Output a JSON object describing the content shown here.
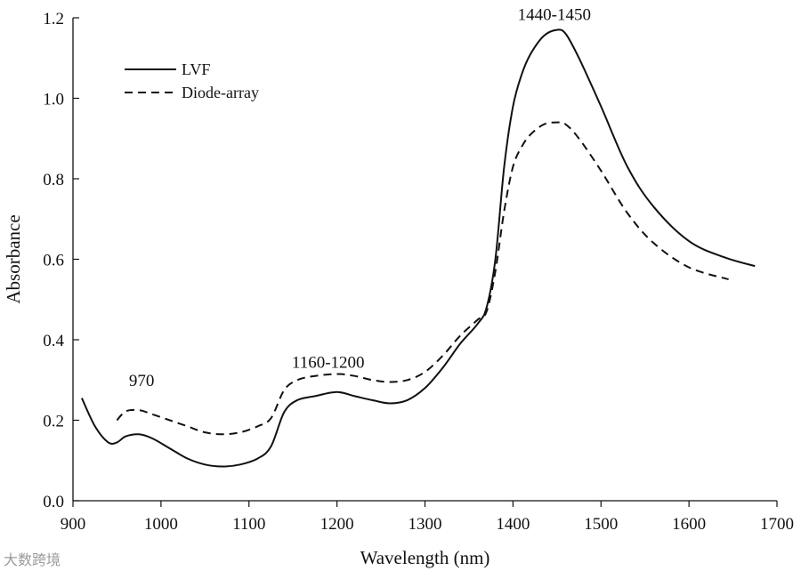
{
  "chart_data": {
    "type": "line",
    "title": "",
    "xlabel": "Wavelength (nm)",
    "ylabel": "Absorbance",
    "xlim": [
      900,
      1700
    ],
    "ylim": [
      0,
      1.2
    ],
    "xticks": [
      900,
      1000,
      1100,
      1200,
      1300,
      1400,
      1500,
      1600,
      1700
    ],
    "yticks": [
      0.0,
      0.2,
      0.4,
      0.6,
      0.8,
      1.0,
      1.2
    ],
    "xtick_labels": [
      "900",
      "1000",
      "1100",
      "1200",
      "1300",
      "1400",
      "1500",
      "1600",
      "1700"
    ],
    "ytick_labels": [
      "0.0",
      "0.2",
      "0.4",
      "0.6",
      "0.8",
      "1.0",
      "1.2"
    ],
    "grid": false,
    "legend_position": "top-left",
    "series": [
      {
        "name": "LVF",
        "style": "solid",
        "color": "#111111",
        "x": [
          910,
          925,
          940,
          950,
          960,
          975,
          990,
          1010,
          1030,
          1050,
          1070,
          1090,
          1110,
          1125,
          1140,
          1155,
          1175,
          1200,
          1220,
          1240,
          1260,
          1280,
          1300,
          1320,
          1340,
          1360,
          1370,
          1380,
          1390,
          1400,
          1410,
          1420,
          1435,
          1450,
          1460,
          1475,
          1500,
          1530,
          1560,
          1600,
          1640,
          1675
        ],
        "y": [
          0.255,
          0.185,
          0.145,
          0.145,
          0.16,
          0.165,
          0.155,
          0.13,
          0.105,
          0.09,
          0.085,
          0.09,
          0.105,
          0.135,
          0.22,
          0.25,
          0.26,
          0.27,
          0.26,
          0.25,
          0.242,
          0.25,
          0.28,
          0.33,
          0.39,
          0.44,
          0.48,
          0.6,
          0.83,
          0.98,
          1.06,
          1.11,
          1.155,
          1.17,
          1.16,
          1.1,
          0.98,
          0.83,
          0.73,
          0.645,
          0.605,
          0.583
        ]
      },
      {
        "name": "Diode-array",
        "style": "dashed",
        "color": "#111111",
        "x": [
          950,
          960,
          975,
          990,
          1010,
          1030,
          1050,
          1070,
          1090,
          1110,
          1125,
          1140,
          1155,
          1175,
          1200,
          1220,
          1240,
          1260,
          1280,
          1300,
          1320,
          1340,
          1360,
          1370,
          1380,
          1390,
          1400,
          1410,
          1420,
          1435,
          1450,
          1460,
          1475,
          1500,
          1530,
          1560,
          1600,
          1645
        ],
        "y": [
          0.2,
          0.222,
          0.225,
          0.215,
          0.2,
          0.185,
          0.17,
          0.165,
          0.17,
          0.185,
          0.205,
          0.275,
          0.3,
          0.31,
          0.315,
          0.31,
          0.3,
          0.295,
          0.3,
          0.32,
          0.36,
          0.41,
          0.45,
          0.47,
          0.57,
          0.72,
          0.83,
          0.88,
          0.91,
          0.935,
          0.94,
          0.935,
          0.9,
          0.82,
          0.715,
          0.64,
          0.58,
          0.55
        ]
      }
    ],
    "annotations": [
      {
        "text": "970",
        "x": 978,
        "y": 0.285
      },
      {
        "text": "1160-1200",
        "x": 1190,
        "y": 0.33
      },
      {
        "text": "1440-1450",
        "x": 1447,
        "y": 1.195
      }
    ]
  },
  "watermark": {
    "text": "大数跨境"
  }
}
